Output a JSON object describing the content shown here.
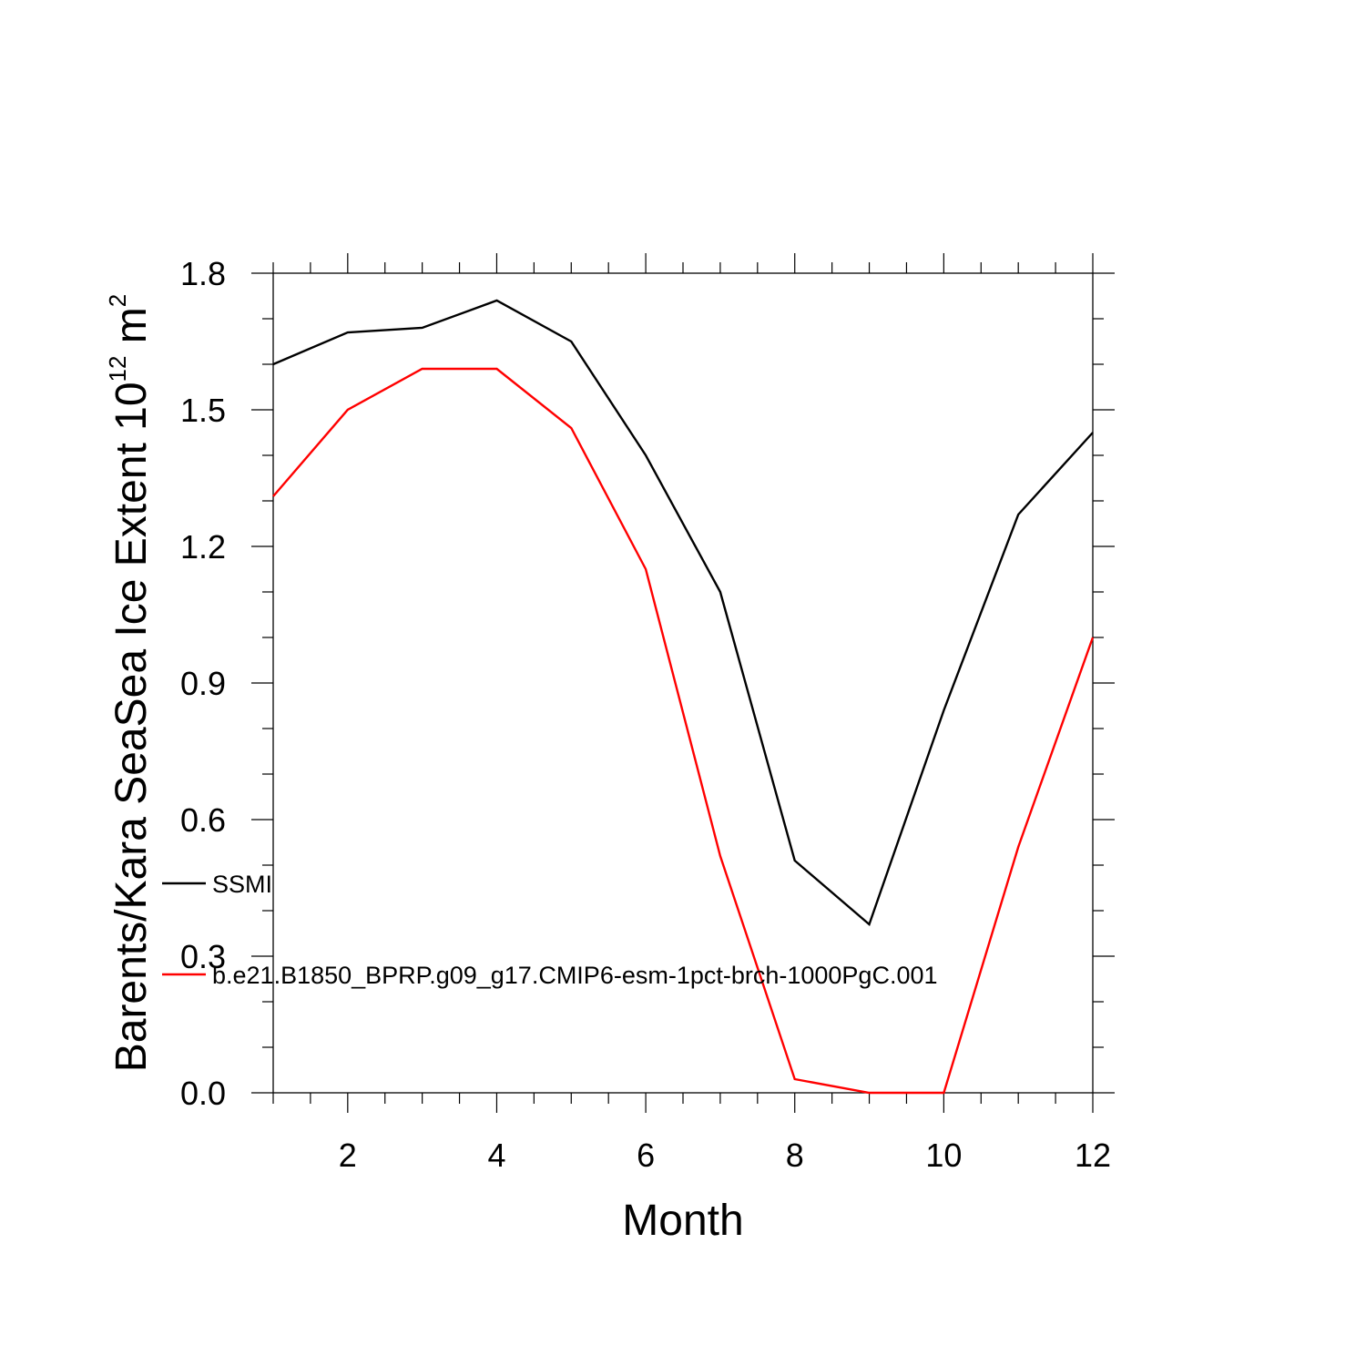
{
  "chart_data": {
    "type": "line",
    "title": "",
    "xlabel": "Month",
    "ylabel_main": "Barents/Kara SeaSea Ice Extent 10",
    "ylabel_exponent": "12",
    "ylabel_unit": " m",
    "ylabel_unit_exponent": "2",
    "xlim": [
      1,
      12
    ],
    "ylim": [
      0,
      1.8
    ],
    "x_ticks": [
      2,
      4,
      6,
      8,
      10,
      12
    ],
    "x_tick_labels": [
      "2",
      "4",
      "6",
      "8",
      "10",
      "12"
    ],
    "y_ticks": [
      0.0,
      0.3,
      0.6,
      0.9,
      1.2,
      1.5,
      1.8
    ],
    "y_tick_labels": [
      "0.0",
      "0.3",
      "0.6",
      "0.9",
      "1.2",
      "1.5",
      "1.8"
    ],
    "grid": false,
    "legend_placement": "left, inside plot",
    "x": [
      1,
      2,
      3,
      4,
      5,
      6,
      7,
      8,
      9,
      10,
      11,
      12
    ],
    "series": [
      {
        "name": "SSMI",
        "color": "#000000",
        "values": [
          1.6,
          1.67,
          1.68,
          1.74,
          1.65,
          1.4,
          1.1,
          0.51,
          0.37,
          0.84,
          1.27,
          1.45
        ]
      },
      {
        "name": "b.e21.B1850_BPRP.g09_g17.CMIP6-esm-1pct-brch-1000PgC.001",
        "color": "#ff0000",
        "values": [
          1.31,
          1.5,
          1.59,
          1.59,
          1.46,
          1.15,
          0.52,
          0.03,
          0.0,
          0.0,
          0.54,
          1.0
        ]
      }
    ]
  }
}
